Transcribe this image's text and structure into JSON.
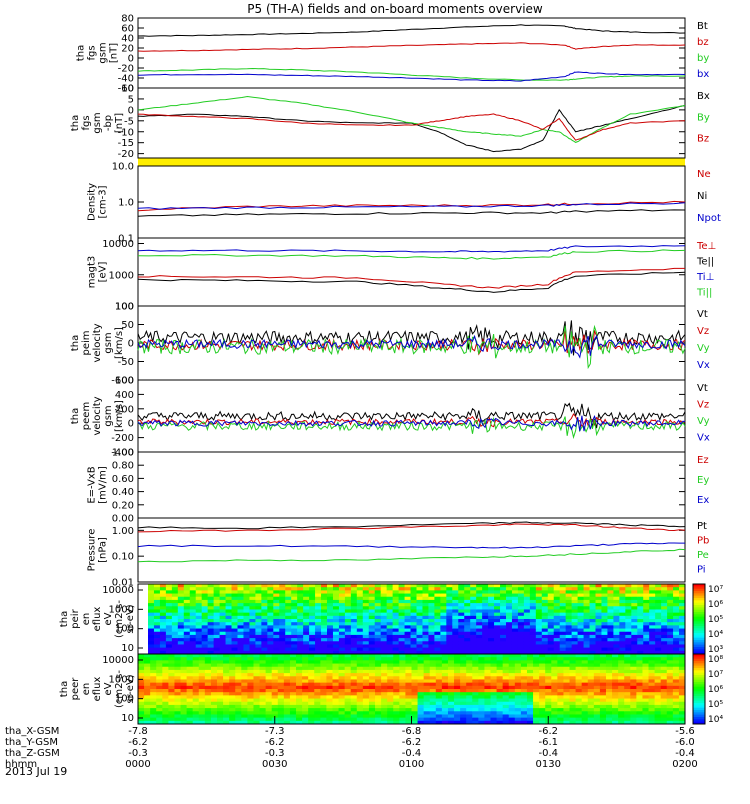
{
  "title": "P5 (TH-A) fields and on-board moments overview",
  "date": "2013 Jul 19",
  "colors": {
    "black": "#000000",
    "red": "#cc0000",
    "green": "#22cc22",
    "blue": "#0000cc",
    "yellow": "#ffee00"
  },
  "chart_data": [
    {
      "id": "fgs-mag",
      "type": "line",
      "ylabel": [
        "tha",
        "fgs",
        "gsm",
        "[nT]"
      ],
      "ylim": [
        -60,
        80
      ],
      "yticks": [
        "80",
        "60",
        "40",
        "20",
        "0",
        "-20",
        "-40",
        "-60"
      ],
      "tickvals": [
        80,
        60,
        40,
        20,
        0,
        -20,
        -40,
        -60
      ],
      "x": [
        0,
        0.1,
        0.2,
        0.3,
        0.4,
        0.5,
        0.6,
        0.7,
        0.78,
        0.8,
        0.85,
        0.9,
        1
      ],
      "series": [
        {
          "name": "Bt",
          "color": "black",
          "values": [
            44,
            45,
            47,
            49,
            52,
            57,
            62,
            66,
            64,
            59,
            54,
            52,
            50
          ]
        },
        {
          "name": "bz",
          "color": "red",
          "values": [
            14,
            15,
            17,
            19,
            22,
            25,
            28,
            30,
            26,
            18,
            23,
            26,
            26
          ]
        },
        {
          "name": "by",
          "color": "green",
          "values": [
            -26,
            -24,
            -21,
            -24,
            -28,
            -34,
            -40,
            -44,
            -44,
            -42,
            -38,
            -36,
            -36
          ]
        },
        {
          "name": "bx",
          "color": "blue",
          "values": [
            -34,
            -33,
            -33,
            -35,
            -37,
            -40,
            -44,
            -46,
            -37,
            -28,
            -31,
            -33,
            -33
          ]
        }
      ]
    },
    {
      "id": "fgs-mag-detrended",
      "type": "line",
      "ylabel": [
        "tha",
        "fgs",
        "gsm",
        "-bp",
        "[nT]"
      ],
      "ylim": [
        -22,
        10
      ],
      "yticks": [
        "10",
        "5",
        "0",
        "-5",
        "-10",
        "-15",
        "-20"
      ],
      "tickvals": [
        10,
        5,
        0,
        -5,
        -10,
        -15,
        -20
      ],
      "x": [
        0,
        0.1,
        0.2,
        0.3,
        0.4,
        0.5,
        0.55,
        0.6,
        0.65,
        0.7,
        0.74,
        0.77,
        0.8,
        0.85,
        0.9,
        1
      ],
      "series": [
        {
          "name": "Bx",
          "color": "black",
          "values": [
            -3,
            -2,
            -3,
            -5,
            -6,
            -6,
            -10,
            -16,
            -19,
            -18,
            -14,
            0,
            -10,
            -7,
            -4,
            2
          ]
        },
        {
          "name": "By",
          "color": "green",
          "values": [
            0,
            3,
            6,
            3,
            -1,
            -6,
            -8,
            -10,
            -11,
            -12,
            -9,
            -10,
            -15,
            -8,
            -2,
            2
          ]
        },
        {
          "name": "Bz",
          "color": "red",
          "values": [
            -2,
            -3,
            -4,
            -6,
            -7,
            -7,
            -5,
            -3,
            -2,
            -5,
            -9,
            -4,
            -14,
            -9,
            -6,
            -5
          ]
        }
      ]
    },
    {
      "id": "density",
      "type": "line",
      "log": true,
      "ylabel": [
        "Density",
        "[cm-3]"
      ],
      "ylim": [
        0.1,
        10
      ],
      "yticks": [
        "10.0",
        "1.0",
        "0.1"
      ],
      "tickvals": [
        10,
        1,
        0.1
      ],
      "x": [
        0,
        0.2,
        0.4,
        0.6,
        0.75,
        0.8,
        1
      ],
      "series": [
        {
          "name": "Ne",
          "color": "red",
          "values": [
            0.6,
            0.75,
            0.8,
            0.8,
            0.85,
            0.9,
            1.0
          ]
        },
        {
          "name": "Ni",
          "color": "black",
          "values": [
            0.4,
            0.45,
            0.48,
            0.5,
            0.5,
            0.55,
            0.6
          ]
        },
        {
          "name": "Npot",
          "color": "blue",
          "values": [
            0.65,
            0.7,
            0.72,
            0.75,
            0.8,
            0.85,
            0.95
          ]
        }
      ]
    },
    {
      "id": "temperature",
      "type": "line",
      "log": true,
      "ylabel": [
        "magt3",
        "[eV]"
      ],
      "ylim": [
        100,
        15000
      ],
      "yticks": [
        "10000",
        "1000",
        "100"
      ],
      "tickvals": [
        10000,
        1000,
        100
      ],
      "x": [
        0,
        0.2,
        0.4,
        0.55,
        0.65,
        0.75,
        0.8,
        1
      ],
      "series": [
        {
          "name": "Te⊥",
          "color": "red",
          "values": [
            900,
            850,
            800,
            500,
            380,
            500,
            1200,
            1600
          ]
        },
        {
          "name": "Te||",
          "color": "black",
          "values": [
            700,
            650,
            600,
            380,
            280,
            380,
            900,
            1200
          ]
        },
        {
          "name": "Ti⊥",
          "color": "blue",
          "values": [
            6000,
            6000,
            5800,
            5500,
            5500,
            6000,
            8000,
            8500
          ]
        },
        {
          "name": "Ti||",
          "color": "green",
          "values": [
            4200,
            4200,
            4000,
            3500,
            3300,
            3800,
            5500,
            6000
          ]
        }
      ]
    },
    {
      "id": "peim-velocity",
      "type": "line",
      "noisy": true,
      "ylabel": [
        "tha",
        "peim",
        "velocity",
        "gsm",
        "[km/s]"
      ],
      "ylim": [
        -100,
        100
      ],
      "yticks": [
        "100",
        "50",
        "0",
        "-50",
        "-100"
      ],
      "tickvals": [
        100,
        50,
        0,
        -50,
        -100
      ],
      "series": [
        {
          "name": "Vt",
          "color": "black",
          "base": 15,
          "amp": 18
        },
        {
          "name": "Vz",
          "color": "red",
          "base": -5,
          "amp": 14
        },
        {
          "name": "Vy",
          "color": "green",
          "base": -10,
          "amp": 20
        },
        {
          "name": "Vx",
          "color": "blue",
          "base": -3,
          "amp": 12
        }
      ]
    },
    {
      "id": "peem-velocity",
      "type": "line",
      "noisy": true,
      "ylabel": [
        "tha",
        "peem",
        "velocity",
        "gsm",
        "[km/s]"
      ],
      "ylim": [
        -400,
        600
      ],
      "yticks": [
        "600",
        "400",
        "200",
        "0",
        "-200",
        "-400"
      ],
      "tickvals": [
        600,
        400,
        200,
        0,
        -200,
        -400
      ],
      "series": [
        {
          "name": "Vt",
          "color": "black",
          "base": 100,
          "amp": 60
        },
        {
          "name": "Vz",
          "color": "red",
          "base": 20,
          "amp": 40
        },
        {
          "name": "Vy",
          "color": "green",
          "base": -40,
          "amp": 60
        },
        {
          "name": "Vx",
          "color": "blue",
          "base": 0,
          "amp": 40
        }
      ]
    },
    {
      "id": "efield",
      "type": "line",
      "ylabel": [
        "E=-VxB",
        "[mV/m]"
      ],
      "ylim": [
        0,
        1
      ],
      "yticks": [
        "1.00",
        "0.80",
        "0.60",
        "0.40",
        "0.20",
        "0.00"
      ],
      "tickvals": [
        1,
        0.8,
        0.6,
        0.4,
        0.2,
        0
      ],
      "series": [
        {
          "name": "Ez",
          "color": "red"
        },
        {
          "name": "Ey",
          "color": "green"
        },
        {
          "name": "Ex",
          "color": "blue"
        }
      ]
    },
    {
      "id": "pressure",
      "type": "line",
      "log": true,
      "ylabel": [
        "Pressure",
        "[nPa]"
      ],
      "ylim": [
        0.01,
        3
      ],
      "yticks": [
        "1.00",
        "0.10",
        "0.01"
      ],
      "tickvals": [
        1,
        0.1,
        0.01
      ],
      "x": [
        0,
        0.2,
        0.4,
        0.6,
        0.7,
        0.8,
        0.9,
        1
      ],
      "series": [
        {
          "name": "Pt",
          "color": "black",
          "values": [
            1.3,
            1.2,
            1.4,
            1.8,
            2.0,
            1.9,
            1.6,
            1.4
          ]
        },
        {
          "name": "Pb",
          "color": "red",
          "values": [
            0.9,
            1.0,
            1.2,
            1.5,
            1.7,
            1.6,
            1.2,
            1.0
          ]
        },
        {
          "name": "Pe",
          "color": "green",
          "values": [
            0.06,
            0.07,
            0.07,
            0.09,
            0.1,
            0.12,
            0.15,
            0.18
          ]
        },
        {
          "name": "Pi",
          "color": "blue",
          "values": [
            0.25,
            0.25,
            0.24,
            0.22,
            0.21,
            0.25,
            0.3,
            0.32
          ]
        }
      ]
    },
    {
      "id": "peir-spectrogram",
      "type": "heatmap",
      "ylabel": [
        "tha",
        "peir",
        "en",
        "eflux",
        "eV",
        "(cm2-s-",
        "sr-eV)"
      ],
      "yticks": [
        "10000",
        "1000",
        "100",
        "10"
      ],
      "colorbar": [
        "10⁷",
        "10⁶",
        "10⁵",
        "10⁴",
        "10³"
      ]
    },
    {
      "id": "peer-spectrogram",
      "type": "heatmap",
      "ylabel": [
        "tha",
        "peer",
        "en",
        "eflux",
        "eV",
        "(cm2-s-",
        "sr-eV)"
      ],
      "yticks": [
        "10000",
        "1000",
        "100",
        "10"
      ],
      "colorbar": [
        "10⁸",
        "10⁷",
        "10⁶",
        "10⁵",
        "10⁴"
      ]
    }
  ],
  "xaxis": {
    "rows": [
      {
        "label": "tha_X-GSM",
        "ticks": [
          "-7.8",
          "-7.3",
          "-6.8",
          "-6.2",
          "-5.6"
        ]
      },
      {
        "label": "tha_Y-GSM",
        "ticks": [
          "-6.2",
          "-6.2",
          "-6.2",
          "-6.1",
          "-6.0"
        ]
      },
      {
        "label": "tha_Z-GSM",
        "ticks": [
          "-0.3",
          "-0.3",
          "-0.4",
          "-0.4",
          "-0.4"
        ]
      },
      {
        "label": "hhmm",
        "ticks": [
          "0000",
          "0030",
          "0100",
          "0130",
          "0200"
        ]
      }
    ]
  }
}
